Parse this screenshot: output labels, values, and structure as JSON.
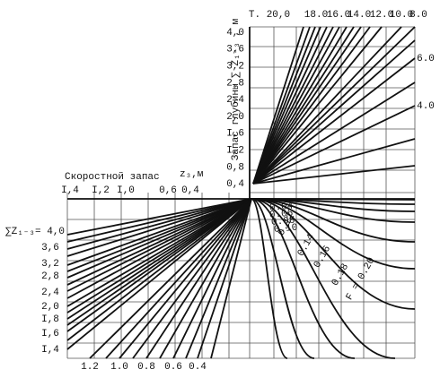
{
  "upper_axis": {
    "label": "Запас глубины ∑ Z₁₋₃ , м",
    "ticks": [
      "4,0",
      "3,6",
      "3,2",
      "2,8",
      "2,4",
      "2,0",
      "I,6",
      "I,2",
      "0,8",
      "0,4"
    ]
  },
  "t_curves": {
    "top_labels": [
      "Т. 20,0",
      "18.0",
      "16.0",
      "14.0",
      "12.0",
      "10.0",
      "8.0"
    ],
    "right_labels": [
      "6.0",
      "4.0"
    ]
  },
  "speed_axis": {
    "label": "Скоростной запас",
    "unit": "z₃,м",
    "ticks": [
      "I,4",
      "I,2",
      "I,0",
      "0,6",
      "0,4"
    ]
  },
  "f_curves": [
    "0.04",
    "0.06",
    "0.08",
    "0.10",
    "0.12",
    "0.14",
    "0.16",
    "0.18",
    "F = 0.20"
  ],
  "left_axis": {
    "label": "∑Z₁₋₃= 4,0",
    "ticks": [
      "3,6",
      "3,2",
      "2,8",
      "2,4",
      "2,0",
      "I,8",
      "I,6",
      "I,4"
    ]
  },
  "bottom_ticks": [
    "1.2",
    "1.0",
    "0.8",
    "0.6",
    "0.4"
  ]
}
